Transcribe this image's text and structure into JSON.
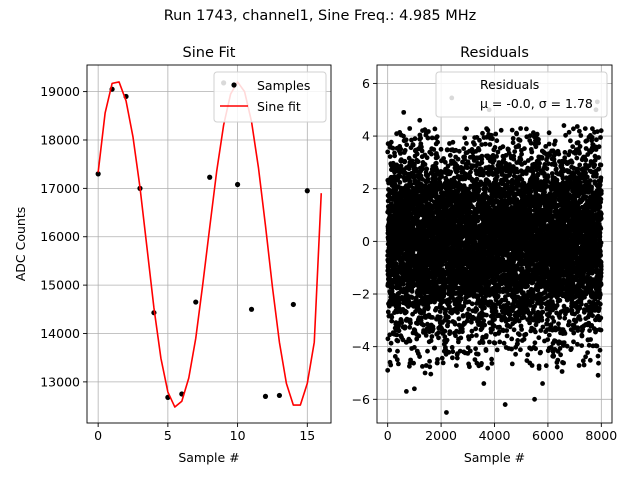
{
  "figure": {
    "suptitle": "Run 1743, channel1, Sine Freq.: 4.985 MHz"
  },
  "chart_data": [
    {
      "type": "scatter",
      "title": "Sine Fit",
      "xlabel": "Sample #",
      "ylabel": "ADC Counts",
      "xlim": [
        -0.8,
        16.7
      ],
      "ylim": [
        12150,
        19550
      ],
      "xticks": [
        0,
        5,
        10,
        15
      ],
      "yticks": [
        13000,
        14000,
        15000,
        16000,
        17000,
        18000,
        19000
      ],
      "grid": true,
      "legend": {
        "placement": "top-right",
        "entries": [
          "Samples",
          "Sine fit"
        ]
      },
      "series": [
        {
          "name": "Samples",
          "kind": "points",
          "color": "#000000",
          "x": [
            0,
            1,
            2,
            3,
            4,
            5,
            6,
            7,
            8,
            9,
            10,
            11,
            12,
            13,
            14,
            15
          ],
          "y": [
            17300,
            19050,
            18900,
            17000,
            14430,
            12680,
            12750,
            14650,
            17230,
            19180,
            17080,
            14500,
            12700,
            12720,
            14600,
            16950
          ]
        },
        {
          "name": "Sine fit",
          "kind": "line",
          "color": "#ff0000",
          "x": [
            0,
            0.5,
            1,
            1.5,
            2,
            2.5,
            3,
            3.5,
            4,
            4.5,
            5,
            5.5,
            6,
            6.5,
            7,
            7.5,
            8,
            8.5,
            9,
            9.5,
            10,
            10.5,
            11,
            11.5,
            12,
            12.5,
            13,
            13.5,
            14,
            14.5,
            15,
            15.5,
            16
          ],
          "y": [
            17330,
            18560,
            19170,
            19200,
            18810,
            18060,
            17020,
            15780,
            14530,
            13490,
            12790,
            12480,
            12600,
            13080,
            13900,
            15010,
            16190,
            17350,
            18310,
            18950,
            19200,
            19000,
            18380,
            17420,
            16230,
            14960,
            13820,
            12970,
            12520,
            12520,
            12970,
            13820,
            16900
          ]
        }
      ]
    },
    {
      "type": "scatter",
      "title": "Residuals",
      "xlabel": "Sample #",
      "ylabel": "",
      "xlim": [
        -400,
        8400
      ],
      "ylim": [
        -6.9,
        6.7
      ],
      "xticks": [
        0,
        2000,
        4000,
        6000,
        8000
      ],
      "yticks": [
        -6,
        -4,
        -2,
        0,
        2,
        4,
        6
      ],
      "grid": true,
      "legend": {
        "placement": "top-right",
        "entries": [
          "Residuals",
          "μ = -0.0, σ = 1.78"
        ]
      },
      "series": [
        {
          "name": "Residuals",
          "kind": "points",
          "color": "#000000",
          "n_points": 8000,
          "x_range": [
            0,
            8000
          ],
          "mean": -0.0,
          "sigma": 1.78,
          "outliers": [
            {
              "x": 2200,
              "y": -6.5
            },
            {
              "x": 4400,
              "y": -6.2
            },
            {
              "x": 5500,
              "y": -6.0
            },
            {
              "x": 2400,
              "y": 5.45
            },
            {
              "x": 7850,
              "y": 5.3
            },
            {
              "x": 3800,
              "y": 5.0
            },
            {
              "x": 7800,
              "y": 5.0
            },
            {
              "x": 600,
              "y": 4.9
            },
            {
              "x": 700,
              "y": -5.7
            },
            {
              "x": 1000,
              "y": -5.6
            },
            {
              "x": 3600,
              "y": -5.4
            },
            {
              "x": 5800,
              "y": -5.4
            },
            {
              "x": 0,
              "y": -4.9
            },
            {
              "x": 1400,
              "y": -5.0
            },
            {
              "x": 6600,
              "y": 4.4
            },
            {
              "x": 1200,
              "y": 4.6
            }
          ]
        }
      ]
    }
  ]
}
